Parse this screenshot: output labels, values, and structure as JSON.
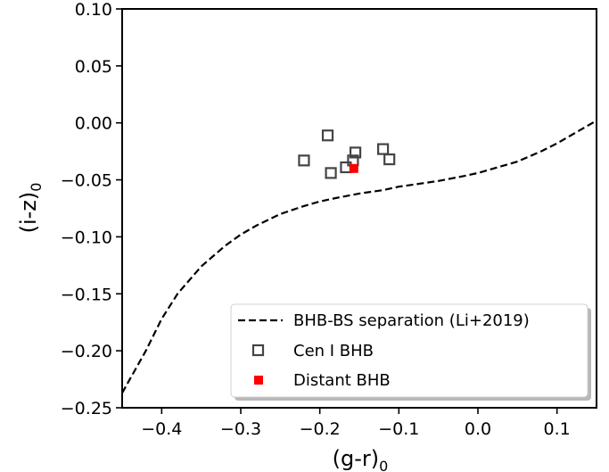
{
  "chart_data": {
    "type": "scatter",
    "xlabel": "(g-r)",
    "xlabel_sub": "0",
    "ylabel": "(i-z)",
    "ylabel_sub": "0",
    "xlim": [
      -0.45,
      0.15
    ],
    "ylim": [
      -0.25,
      0.1
    ],
    "xticks": [
      -0.4,
      -0.3,
      -0.2,
      -0.1,
      0.0,
      0.1
    ],
    "xtick_labels": [
      "−0.4",
      "−0.3",
      "−0.2",
      "−0.1",
      "0.0",
      "0.1"
    ],
    "yticks": [
      0.1,
      0.05,
      0.0,
      -0.05,
      -0.1,
      -0.15,
      -0.2,
      -0.25
    ],
    "ytick_labels": [
      "0.10",
      "0.05",
      "0.00",
      "−0.05",
      "−0.10",
      "−0.15",
      "−0.20",
      "−0.25"
    ],
    "grid": false,
    "legend_position": "lower-right",
    "series": [
      {
        "name": "BHB-BS separation (Li+2019)",
        "kind": "line",
        "style": "dashed",
        "color": "#000000",
        "x": [
          -0.45,
          -0.42,
          -0.4,
          -0.38,
          -0.35,
          -0.32,
          -0.3,
          -0.28,
          -0.25,
          -0.22,
          -0.2,
          -0.18,
          -0.15,
          -0.12,
          -0.1,
          -0.08,
          -0.05,
          -0.02,
          0.0,
          0.02,
          0.05,
          0.08,
          0.1,
          0.12,
          0.15
        ],
        "y": [
          -0.237,
          -0.2,
          -0.172,
          -0.15,
          -0.126,
          -0.108,
          -0.098,
          -0.09,
          -0.08,
          -0.073,
          -0.069,
          -0.066,
          -0.062,
          -0.059,
          -0.056,
          -0.054,
          -0.051,
          -0.047,
          -0.044,
          -0.04,
          -0.034,
          -0.025,
          -0.018,
          -0.01,
          0.002
        ]
      },
      {
        "name": "Cen I BHB",
        "kind": "scatter",
        "marker": "open-square",
        "color": "#444444",
        "x": [
          -0.22,
          -0.19,
          -0.186,
          -0.167,
          -0.158,
          -0.155,
          -0.12,
          -0.112
        ],
        "y": [
          -0.033,
          -0.011,
          -0.044,
          -0.039,
          -0.033,
          -0.026,
          -0.023,
          -0.032
        ]
      },
      {
        "name": "Distant BHB",
        "kind": "scatter",
        "marker": "filled-square",
        "color": "#ff0000",
        "x": [
          -0.157
        ],
        "y": [
          -0.04
        ]
      }
    ]
  }
}
